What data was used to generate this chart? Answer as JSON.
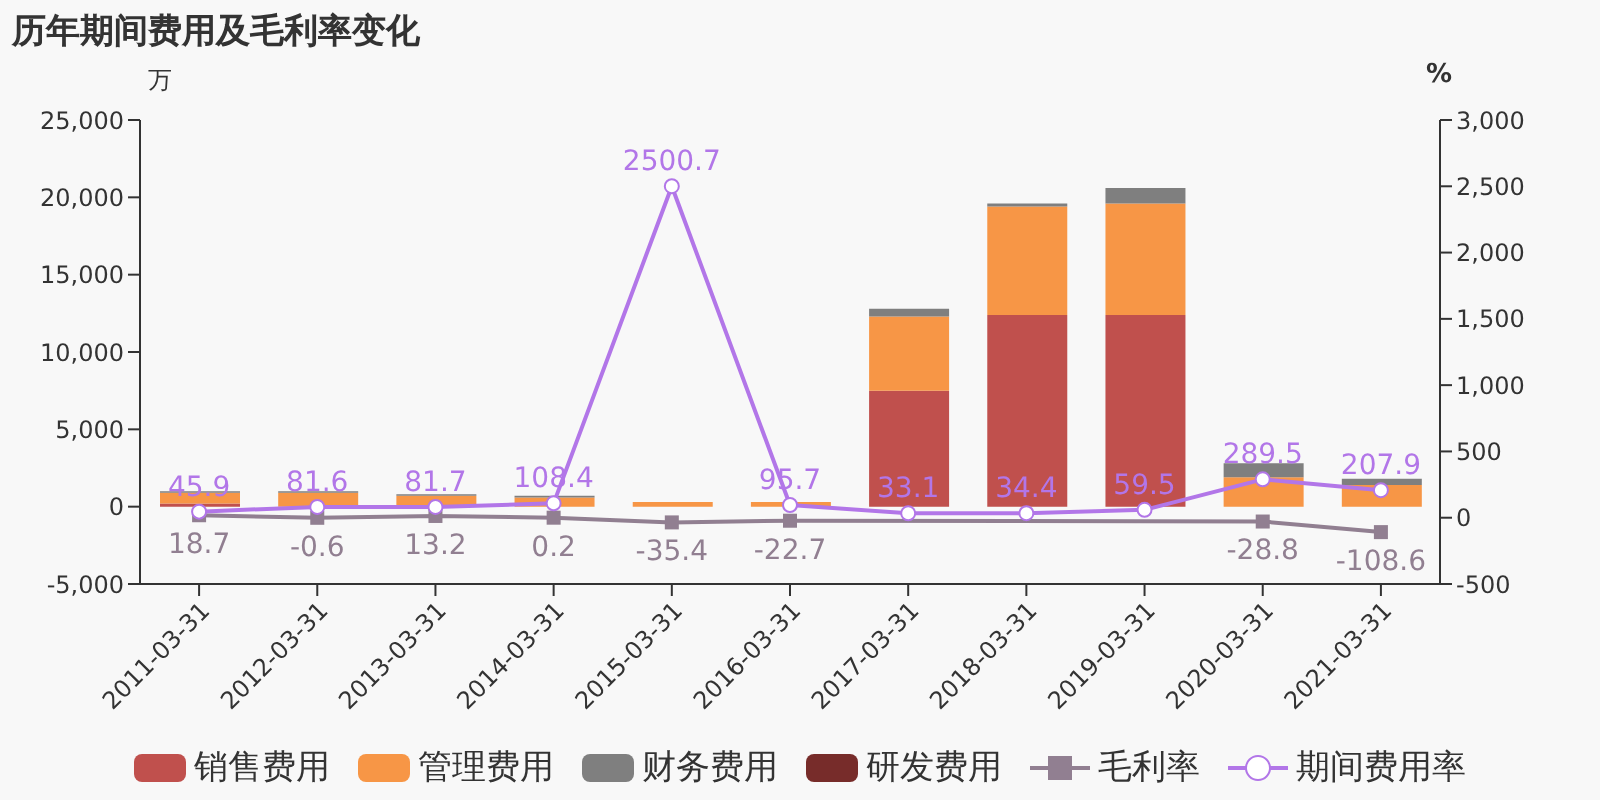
{
  "chart_data": {
    "type": "bar",
    "title": "历年期间费用及毛利率变化",
    "ylabel": "万",
    "y2label": "%",
    "categories": [
      "2011-03-31",
      "2012-03-31",
      "2013-03-31",
      "2014-03-31",
      "2015-03-31",
      "2016-03-31",
      "2017-03-31",
      "2018-03-31",
      "2019-03-31",
      "2020-03-31",
      "2021-03-31"
    ],
    "stacked": true,
    "ylim": [
      -5000,
      25000
    ],
    "yticks": [
      {
        "value": -5000,
        "label": "-5,000"
      },
      0,
      {
        "value": 5000,
        "label": "5,000"
      },
      {
        "value": 10000,
        "label": "10,000"
      },
      {
        "value": 15000,
        "label": "15,000"
      },
      {
        "value": 20000,
        "label": "20,000"
      },
      {
        "value": 25000,
        "label": "25,000"
      }
    ],
    "y2lim": [
      -500,
      3000
    ],
    "y2ticks": [
      -500,
      0,
      500,
      {
        "value": 1000,
        "label": "1,000"
      },
      {
        "value": 1500,
        "label": "1,500"
      },
      {
        "value": 2000,
        "label": "2,000"
      },
      {
        "value": 2500,
        "label": "2,500"
      },
      {
        "value": 3000,
        "label": "3,000"
      }
    ],
    "grid": false,
    "legend": "bottom",
    "series": [
      {
        "name": "销售费用",
        "color": "#c0504d",
        "values": [
          200,
          0,
          0,
          0,
          0,
          0,
          7500,
          12400,
          12400,
          0,
          0
        ]
      },
      {
        "name": "管理费用",
        "color": "#f79646",
        "values": [
          700,
          900,
          700,
          600,
          300,
          300,
          4800,
          7000,
          7200,
          1900,
          1400
        ]
      },
      {
        "name": "财务费用",
        "color": "#7f7f7f",
        "values": [
          100,
          100,
          100,
          100,
          0,
          0,
          500,
          200,
          1000,
          900,
          400
        ]
      },
      {
        "name": "研发费用",
        "color": "#772c2a",
        "values": [
          0,
          0,
          0,
          0,
          0,
          0,
          0,
          0,
          0,
          0,
          0
        ]
      },
      {
        "name": "毛利率",
        "type": "line",
        "axis": "y2",
        "marker": "square",
        "color": "#917f91",
        "values": [
          18.7,
          -0.6,
          13.2,
          0.2,
          -35.4,
          -22.7,
          null,
          null,
          null,
          -28.8,
          -108.6
        ],
        "value_labels": [
          "18.7",
          "-0.6",
          "13.2",
          "0.2",
          "-35.4",
          "-22.7",
          null,
          null,
          null,
          "-28.8",
          "-108.6"
        ]
      },
      {
        "name": "期间费用率",
        "type": "line",
        "axis": "y2",
        "marker": "circle",
        "color": "#b276e8",
        "values": [
          45.9,
          81.6,
          81.7,
          108.4,
          2500.7,
          95.7,
          33.1,
          34.4,
          59.5,
          289.5,
          207.9
        ],
        "value_labels": [
          "45.9",
          "81.6",
          "81.7",
          "108.4",
          "2500.7",
          "95.7",
          "33.1",
          "34.4",
          "59.5",
          "289.5",
          "207.9"
        ]
      }
    ]
  }
}
